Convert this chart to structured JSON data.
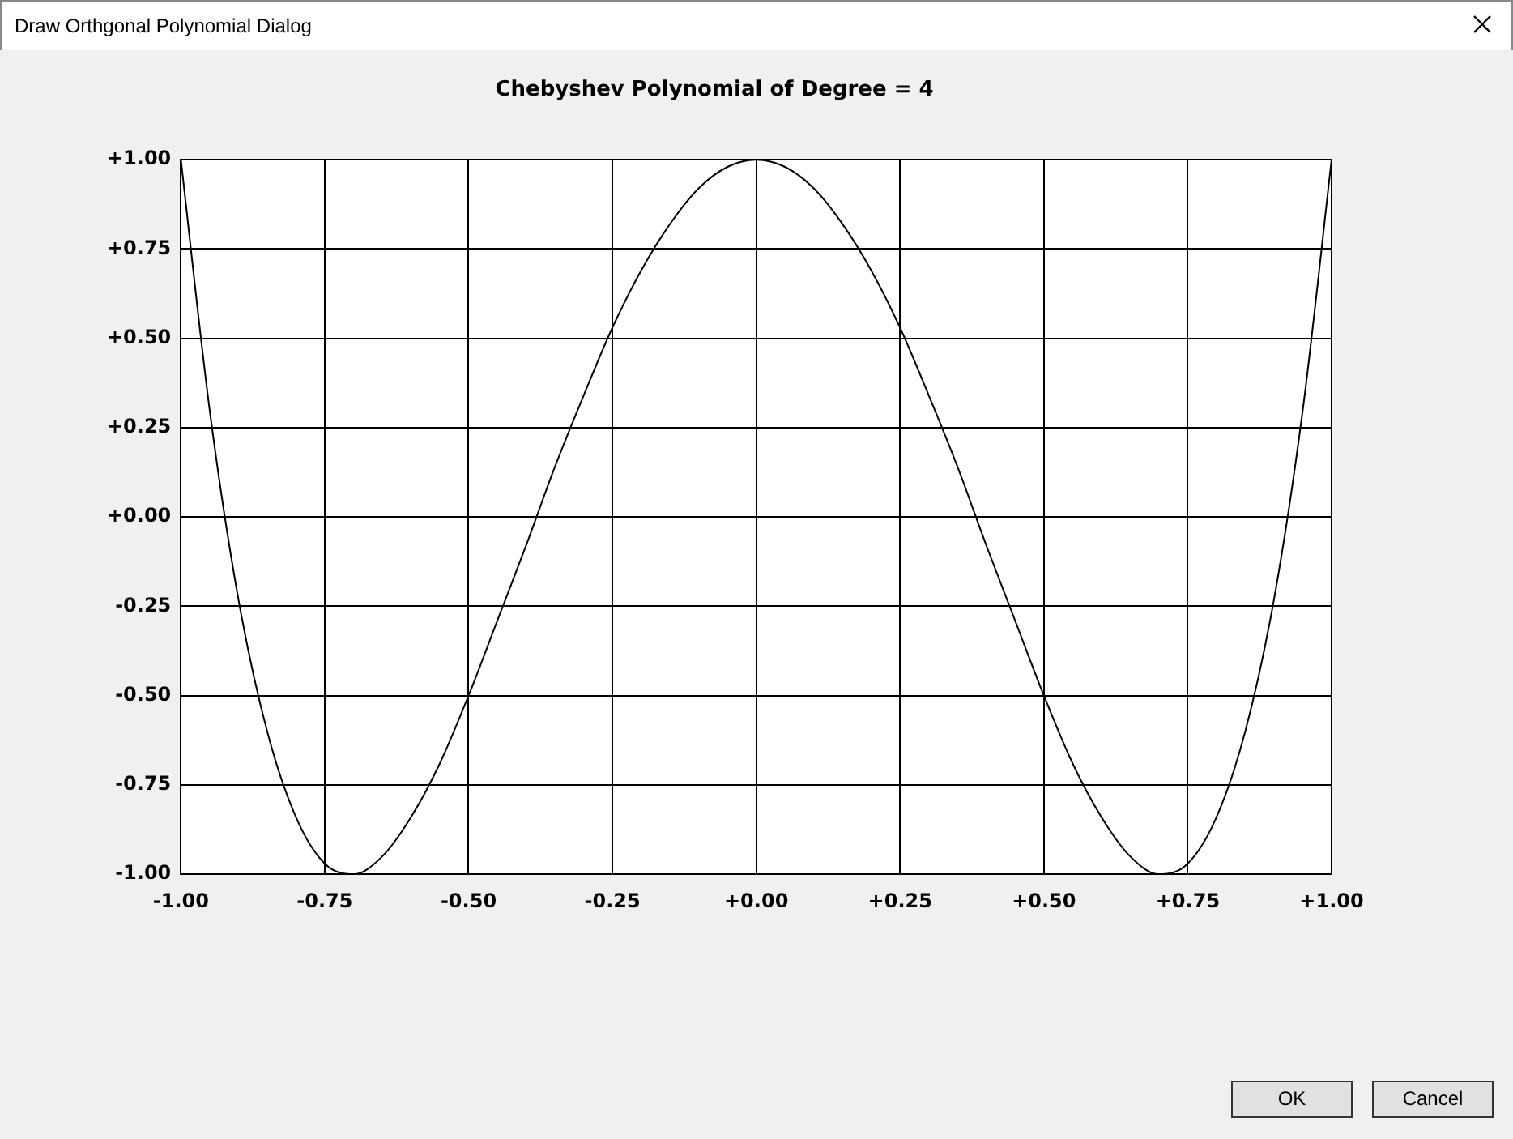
{
  "chart_data": {
    "type": "line",
    "title": "Chebyshev Polynomial of Degree = 4",
    "annotations": [
      "Draw Orthgonal Polynomial Dialog",
      "OK",
      "Cancel"
    ],
    "x": [
      -1,
      -0.95,
      -0.9,
      -0.85,
      -0.8,
      -0.75,
      -0.7,
      -0.65,
      -0.6,
      -0.55,
      -0.5,
      -0.45,
      -0.4,
      -0.35,
      -0.3,
      -0.25,
      -0.2,
      -0.15,
      -0.1,
      -0.05,
      0,
      0.05,
      0.1,
      0.15,
      0.2,
      0.25,
      0.3,
      0.35,
      0.4,
      0.45,
      0.5,
      0.55,
      0.6,
      0.65,
      0.7,
      0.75,
      0.8,
      0.85,
      0.9,
      0.95,
      1
    ],
    "series": [
      {
        "color": "#000000",
        "values": [
          1,
          0.3,
          -0.23,
          -0.6,
          -0.84,
          -0.97,
          -1.0,
          -0.95,
          -0.84,
          -0.69,
          -0.5,
          -0.29,
          -0.08,
          0.14,
          0.34,
          0.53,
          0.69,
          0.82,
          0.92,
          0.98,
          1,
          0.98,
          0.92,
          0.82,
          0.69,
          0.53,
          0.34,
          0.14,
          -0.08,
          -0.29,
          -0.5,
          -0.69,
          -0.84,
          -0.95,
          -1.0,
          -0.97,
          -0.84,
          -0.6,
          -0.23,
          0.3,
          1
        ]
      }
    ],
    "xlim": [
      -1,
      1
    ],
    "ylim": [
      -1,
      1
    ],
    "xticks": [
      {
        "value": -1,
        "label": "-1.00"
      },
      {
        "value": -0.75,
        "label": "-0.75"
      },
      {
        "value": -0.5,
        "label": "-0.50"
      },
      {
        "value": -0.25,
        "label": "-0.25"
      },
      {
        "value": 0,
        "label": "+0.00"
      },
      {
        "value": 0.25,
        "label": "+0.25"
      },
      {
        "value": 0.5,
        "label": "+0.50"
      },
      {
        "value": 0.75,
        "label": "+0.75"
      },
      {
        "value": 1,
        "label": "+1.00"
      }
    ],
    "yticks": [
      {
        "value": -1,
        "label": "-1.00"
      },
      {
        "value": -0.75,
        "label": "-0.75"
      },
      {
        "value": -0.5,
        "label": "-0.50"
      },
      {
        "value": -0.25,
        "label": "-0.25"
      },
      {
        "value": 0,
        "label": "+0.00"
      },
      {
        "value": 0.25,
        "label": "+0.25"
      },
      {
        "value": 0.5,
        "label": "+0.50"
      },
      {
        "value": 0.75,
        "label": "+0.75"
      },
      {
        "value": 1,
        "label": "+1.00"
      }
    ],
    "grid": true,
    "marker": "none",
    "line_style": "solid",
    "legend": false
  }
}
